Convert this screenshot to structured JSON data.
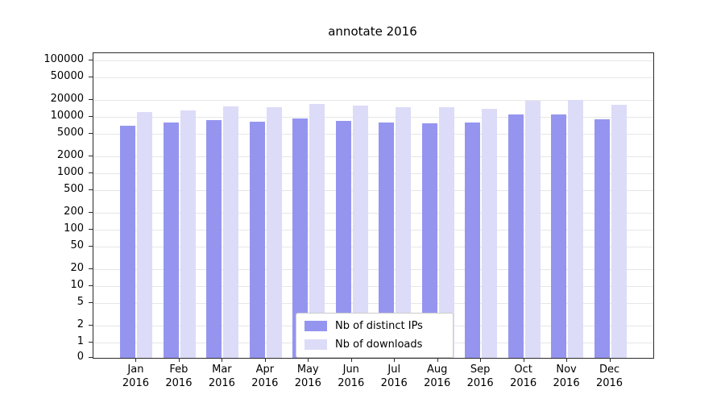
{
  "chart_data": {
    "type": "bar",
    "title": "annotate 2016",
    "scale": "symlog",
    "grid": true,
    "legend_position": "lower-center",
    "year_label": "2016",
    "categories": [
      "Jan",
      "Feb",
      "Mar",
      "Apr",
      "May",
      "Jun",
      "Jul",
      "Aug",
      "Sep",
      "Oct",
      "Nov",
      "Dec"
    ],
    "yticks": [
      100000,
      50000,
      20000,
      10000,
      5000,
      2000,
      1000,
      500,
      200,
      100,
      50,
      20,
      10,
      5,
      2,
      1,
      0
    ],
    "ylim": [
      0,
      150000
    ],
    "series": [
      {
        "name": "Nb of distinct IPs",
        "color": "#9595f0",
        "values": [
          7000,
          8000,
          8800,
          8300,
          9300,
          8600,
          8000,
          7800,
          8000,
          11000,
          11000,
          9200
        ]
      },
      {
        "name": "Nb of downloads",
        "color": "#dcdcf8",
        "values": [
          12000,
          13000,
          15500,
          15000,
          17000,
          15800,
          15000,
          14800,
          14000,
          19500,
          20000,
          16500
        ]
      }
    ]
  },
  "colors": {
    "grid": "#e6e6e6",
    "axis": "#2b2b2b",
    "legend_border": "#cccccc",
    "background": "#ffffff"
  }
}
